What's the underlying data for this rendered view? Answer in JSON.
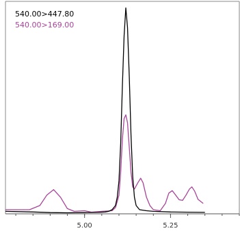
{
  "chart_data": {
    "type": "line",
    "xlim": [
      4.77,
      5.45
    ],
    "ylim": [
      0,
      1.0
    ],
    "grid": false,
    "legend_placement": "top-left",
    "x_ticks": [
      {
        "value": 5.0,
        "label": "5.00"
      },
      {
        "value": 5.25,
        "label": "5.25"
      }
    ],
    "series": [
      {
        "name": "540.00>447.80",
        "color": "#000000",
        "points": [
          [
            4.77,
            0.012
          ],
          [
            4.85,
            0.009
          ],
          [
            4.9,
            0.006
          ],
          [
            4.95,
            0.005
          ],
          [
            5.0,
            0.006
          ],
          [
            5.04,
            0.007
          ],
          [
            5.06,
            0.009
          ],
          [
            5.07,
            0.012
          ],
          [
            5.08,
            0.02
          ],
          [
            5.09,
            0.04
          ],
          [
            5.095,
            0.08
          ],
          [
            5.1,
            0.16
          ],
          [
            5.105,
            0.34
          ],
          [
            5.11,
            0.62
          ],
          [
            5.115,
            0.86
          ],
          [
            5.12,
            0.995
          ],
          [
            5.125,
            0.9
          ],
          [
            5.13,
            0.66
          ],
          [
            5.135,
            0.38
          ],
          [
            5.14,
            0.18
          ],
          [
            5.145,
            0.08
          ],
          [
            5.15,
            0.04
          ],
          [
            5.16,
            0.02
          ],
          [
            5.18,
            0.015
          ],
          [
            5.2,
            0.012
          ],
          [
            5.25,
            0.009
          ],
          [
            5.3,
            0.008
          ],
          [
            5.35,
            0.007
          ]
        ]
      },
      {
        "name": "540.00>169.00",
        "color": "#a9449a",
        "points": [
          [
            4.77,
            0.02
          ],
          [
            4.84,
            0.02
          ],
          [
            4.87,
            0.04
          ],
          [
            4.89,
            0.09
          ],
          [
            4.91,
            0.117
          ],
          [
            4.93,
            0.08
          ],
          [
            4.95,
            0.025
          ],
          [
            4.97,
            0.012
          ],
          [
            5.0,
            0.015
          ],
          [
            5.02,
            0.008
          ],
          [
            5.05,
            0.012
          ],
          [
            5.08,
            0.015
          ],
          [
            5.09,
            0.03
          ],
          [
            5.1,
            0.09
          ],
          [
            5.105,
            0.2
          ],
          [
            5.11,
            0.36
          ],
          [
            5.115,
            0.46
          ],
          [
            5.12,
            0.478
          ],
          [
            5.125,
            0.44
          ],
          [
            5.13,
            0.32
          ],
          [
            5.135,
            0.2
          ],
          [
            5.14,
            0.13
          ],
          [
            5.145,
            0.12
          ],
          [
            5.155,
            0.15
          ],
          [
            5.163,
            0.172
          ],
          [
            5.17,
            0.15
          ],
          [
            5.18,
            0.08
          ],
          [
            5.19,
            0.04
          ],
          [
            5.2,
            0.02
          ],
          [
            5.22,
            0.015
          ],
          [
            5.235,
            0.05
          ],
          [
            5.245,
            0.1
          ],
          [
            5.255,
            0.112
          ],
          [
            5.265,
            0.09
          ],
          [
            5.275,
            0.068
          ],
          [
            5.285,
            0.065
          ],
          [
            5.295,
            0.09
          ],
          [
            5.305,
            0.12
          ],
          [
            5.312,
            0.13
          ],
          [
            5.32,
            0.11
          ],
          [
            5.33,
            0.07
          ],
          [
            5.345,
            0.05
          ]
        ]
      }
    ]
  }
}
